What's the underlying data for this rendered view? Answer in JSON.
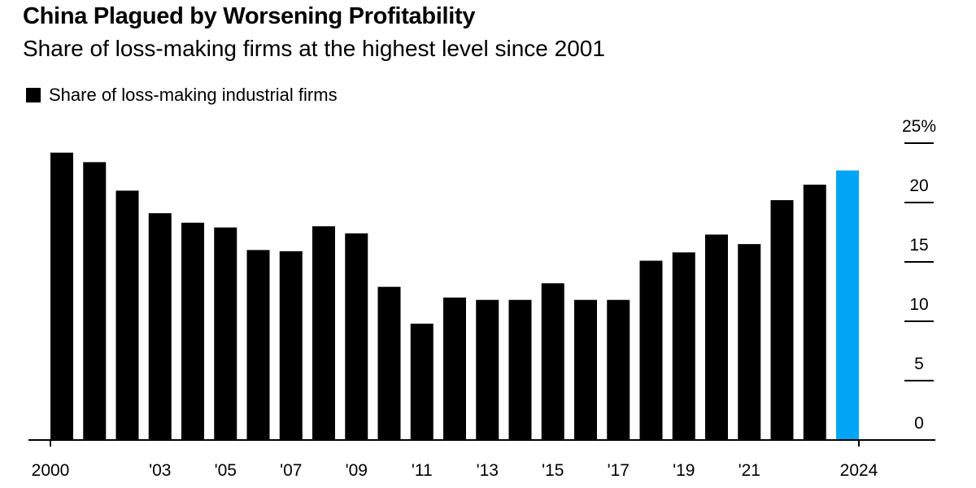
{
  "chart_data": {
    "type": "bar",
    "title": "China Plagued by Worsening Profitability",
    "subtitle": "Share of loss-making firms at the highest level since 2001",
    "legend": [
      {
        "label": "Share of loss-making industrial firms",
        "color": "#000000"
      }
    ],
    "legend_position": "top-left",
    "xlabel": "",
    "ylabel": "",
    "ylim": [
      0,
      25
    ],
    "y_ticks": [
      {
        "value": 25,
        "label": "25%"
      },
      {
        "value": 20,
        "label": "20"
      },
      {
        "value": 15,
        "label": "15"
      },
      {
        "value": 10,
        "label": "10"
      },
      {
        "value": 5,
        "label": "5"
      },
      {
        "value": 0,
        "label": "0"
      }
    ],
    "y_axis_side": "right",
    "categories": [
      2000,
      2001,
      2002,
      2003,
      2004,
      2005,
      2006,
      2007,
      2008,
      2009,
      2010,
      2011,
      2012,
      2013,
      2014,
      2015,
      2016,
      2017,
      2018,
      2019,
      2020,
      2021,
      2022,
      2023,
      2024
    ],
    "values": [
      24.2,
      23.4,
      21.0,
      19.1,
      18.3,
      17.9,
      16.0,
      15.9,
      18.0,
      17.4,
      12.9,
      9.8,
      12.0,
      11.8,
      11.8,
      13.2,
      11.8,
      11.8,
      15.1,
      15.8,
      17.3,
      16.5,
      20.2,
      21.5,
      22.7
    ],
    "x_tick_labels": [
      {
        "year": 2000,
        "label": "2000"
      },
      {
        "year": 2003,
        "label": "'03"
      },
      {
        "year": 2005,
        "label": "'05"
      },
      {
        "year": 2007,
        "label": "'07"
      },
      {
        "year": 2009,
        "label": "'09"
      },
      {
        "year": 2011,
        "label": "'11"
      },
      {
        "year": 2013,
        "label": "'13"
      },
      {
        "year": 2015,
        "label": "'15"
      },
      {
        "year": 2017,
        "label": "'17"
      },
      {
        "year": 2019,
        "label": "'19"
      },
      {
        "year": 2021,
        "label": "'21"
      },
      {
        "year": 2024,
        "label": "2024"
      }
    ],
    "bar_color": "#000000",
    "highlight": {
      "year": 2024,
      "color": "#00a6f5"
    },
    "grid": false
  }
}
